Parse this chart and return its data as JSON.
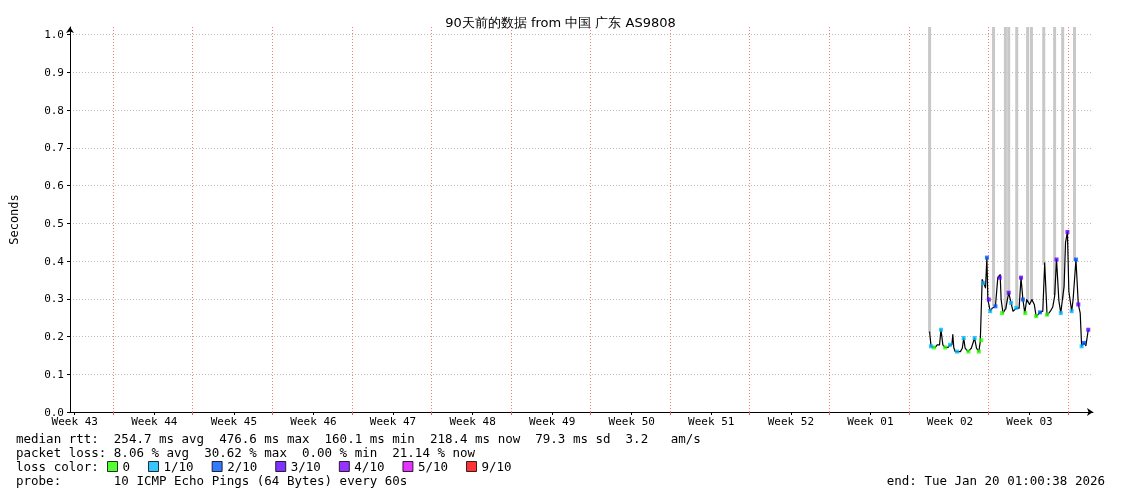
{
  "chart_data": {
    "type": "line",
    "title": "90天前的数据 from 中国 广东 AS9808",
    "ylabel": "Seconds",
    "legend_title": "loss color:",
    "legend": "bottom left",
    "marker": "square",
    "grid": true,
    "xlim": [
      "2025-10-22T01:00",
      "2026-01-20T01:00"
    ],
    "xticks": [
      {
        "value": "2025-10-22T11:00",
        "label": "Week 43"
      },
      {
        "value": "2025-10-29T11:00",
        "label": "Week 44"
      },
      {
        "value": "2025-11-05T11:00",
        "label": "Week 45"
      },
      {
        "value": "2025-11-12T11:00",
        "label": "Week 46"
      },
      {
        "value": "2025-11-19T11:00",
        "label": "Week 47"
      },
      {
        "value": "2025-11-26T11:00",
        "label": "Week 48"
      },
      {
        "value": "2025-12-03T11:00",
        "label": "Week 49"
      },
      {
        "value": "2025-12-10T11:00",
        "label": "Week 50"
      },
      {
        "value": "2025-12-17T11:00",
        "label": "Week 51"
      },
      {
        "value": "2025-12-24T11:00",
        "label": "Week 52"
      },
      {
        "value": "2025-12-31T11:00",
        "label": "Week 01"
      },
      {
        "value": "2026-01-07T11:00",
        "label": "Week 02"
      },
      {
        "value": "2026-01-14T11:00",
        "label": "Week 03"
      },
      {
        "value": "2025-10-25T20:00",
        "label": null
      },
      {
        "value": "2025-11-01T20:00",
        "label": null
      },
      {
        "value": "2025-11-08T20:00",
        "label": null
      },
      {
        "value": "2025-11-15T20:00",
        "label": null
      },
      {
        "value": "2025-11-22T20:00",
        "label": null
      },
      {
        "value": "2025-11-29T20:00",
        "label": null
      },
      {
        "value": "2025-12-06T20:00",
        "label": null
      },
      {
        "value": "2025-12-13T20:00",
        "label": null
      },
      {
        "value": "2025-12-20T20:00",
        "label": null
      },
      {
        "value": "2025-12-27T20:00",
        "label": null
      },
      {
        "value": "2026-01-03T20:00",
        "label": null
      },
      {
        "value": "2026-01-10T20:00",
        "label": null
      },
      {
        "value": "2026-01-17T20:00",
        "label": null
      }
    ],
    "ylim": [
      0,
      1.02
    ],
    "yticks": [
      {
        "value": 0,
        "label": "0.0"
      },
      0.1,
      0.2,
      0.3,
      0.4,
      0.5,
      0.6,
      0.7,
      0.8,
      0.9,
      {
        "value": 1,
        "label": "1.0"
      }
    ],
    "series": [
      {
        "type": "bar",
        "color": "#c8c8c8",
        "x": [
          "2026-01-05T16:00",
          "2026-01-11T07:00",
          "2026-01-12T08:00",
          "2026-01-12T15:00",
          "2026-01-13T08:00",
          "2026-01-14T07:00",
          "2026-01-14T15:00",
          "2026-01-15T17:00",
          "2026-01-16T16:00",
          "2026-01-17T09:00",
          "2026-01-18T10:00"
        ],
        "base": [
          0.21,
          0.28,
          0.27,
          0.31,
          0.28,
          0.29,
          0.29,
          0.39,
          0.31,
          0.3,
          0.4
        ],
        "values": [
          0.81,
          0.74,
          0.75,
          0.71,
          0.74,
          0.73,
          0.73,
          0.63,
          0.71,
          0.72,
          0.62
        ]
      },
      {
        "color": "#000000",
        "marker": "none",
        "x": [
          "2026-01-05T16:00",
          "2026-01-05T19:00",
          "2026-01-06T04:00",
          "2026-01-06T08:00",
          "2026-01-06T13:00",
          "2026-01-06T16:00",
          "2026-01-06T20:00",
          "2026-01-07T00:00",
          "2026-01-07T07:00",
          "2026-01-07T11:00",
          "2026-01-07T15:00",
          "2026-01-07T17:00",
          "2026-01-07T19:00",
          "2026-01-07T22:00",
          "2026-01-08T09:00",
          "2026-01-08T13:00",
          "2026-01-08T16:00",
          "2026-01-08T19:00",
          "2026-01-09T01:00",
          "2026-01-09T08:00",
          "2026-01-09T15:00",
          "2026-01-09T19:00",
          "2026-01-10T00:00",
          "2026-01-10T03:00",
          "2026-01-10T07:00",
          "2026-01-10T10:00",
          "2026-01-10T14:00",
          "2026-01-10T17:00",
          "2026-01-10T19:00",
          "2026-01-11T00:00",
          "2026-01-11T04:00",
          "2026-01-11T11:00",
          "2026-01-11T16:00",
          "2026-01-11T21:00",
          "2026-01-11T23:00",
          "2026-01-12T03:00",
          "2026-01-12T09:00",
          "2026-01-12T15:00",
          "2026-01-12T20:00",
          "2026-01-13T00:00",
          "2026-01-13T07:00",
          "2026-01-13T13:00",
          "2026-01-13T17:00",
          "2026-01-13T21:00",
          "2026-01-14T01:00",
          "2026-01-14T05:00",
          "2026-01-14T11:00",
          "2026-01-14T16:00",
          "2026-01-14T21:00",
          "2026-01-15T01:00",
          "2026-01-15T09:00",
          "2026-01-15T15:00",
          "2026-01-15T19:00",
          "2026-01-16T00:00",
          "2026-01-16T07:00",
          "2026-01-16T12:00",
          "2026-01-16T16:00",
          "2026-01-16T20:00",
          "2026-01-17T01:00",
          "2026-01-17T05:00",
          "2026-01-17T08:00",
          "2026-01-17T12:00",
          "2026-01-17T15:00",
          "2026-01-17T19:00",
          "2026-01-17T22:00",
          "2026-01-18T04:00",
          "2026-01-18T07:00",
          "2026-01-18T13:00",
          "2026-01-18T18:00",
          "2026-01-18T22:00",
          "2026-01-19T01:00",
          "2026-01-19T06:00",
          "2026-01-19T10:00",
          "2026-01-19T15:00"
        ],
        "values": [
          0.213,
          0.174,
          0.171,
          0.178,
          0.178,
          0.218,
          0.178,
          0.171,
          0.171,
          0.178,
          0.178,
          0.205,
          0.171,
          0.16,
          0.16,
          0.169,
          0.196,
          0.169,
          0.16,
          0.169,
          0.196,
          0.169,
          0.16,
          0.187,
          0.351,
          0.342,
          0.329,
          0.409,
          0.298,
          0.267,
          0.275,
          0.28,
          0.356,
          0.364,
          0.298,
          0.262,
          0.275,
          0.316,
          0.289,
          0.267,
          0.275,
          0.275,
          0.356,
          0.298,
          0.262,
          0.298,
          0.285,
          0.298,
          0.285,
          0.253,
          0.264,
          0.267,
          0.395,
          0.256,
          0.267,
          0.278,
          0.307,
          0.404,
          0.294,
          0.262,
          0.294,
          0.333,
          0.449,
          0.477,
          0.32,
          0.267,
          0.298,
          0.404,
          0.285,
          0.262,
          0.174,
          0.183,
          0.176,
          0.218
        ]
      },
      {
        "type": "scatter",
        "name": "0",
        "color": "#26ff00",
        "x": [
          "2026-01-06T01:00",
          "2026-01-07T01:00",
          "2026-01-09T02:00",
          "2026-01-10T00:00",
          "2026-01-10T05:00",
          "2026-01-12T01:00",
          "2026-01-14T02:00",
          "2026-01-15T01:00",
          "2026-01-16T00:00"
        ],
        "values": [
          0.171,
          0.171,
          0.16,
          0.16,
          0.19,
          0.262,
          0.262,
          0.254,
          0.258
        ]
      },
      {
        "type": "scatter",
        "name": "1/10",
        "color": "#00b8ff",
        "x": [
          "2026-01-05T19:00",
          "2026-01-06T16:00",
          "2026-01-07T11:00",
          "2026-01-08T02:00",
          "2026-01-08T16:00",
          "2026-01-09T15:00",
          "2026-01-10T09:00",
          "2026-01-11T00:00",
          "2026-01-12T20:00",
          "2026-01-13T07:00",
          "2026-01-17T05:00",
          "2026-01-18T04:00",
          "2026-01-19T01:00"
        ],
        "values": [
          0.174,
          0.218,
          0.178,
          0.16,
          0.196,
          0.196,
          0.342,
          0.267,
          0.289,
          0.276,
          0.262,
          0.267,
          0.174
        ]
      },
      {
        "type": "scatter",
        "name": "2/10",
        "color": "#0059ff",
        "x": [
          "2026-01-10T17:00",
          "2026-01-11T11:00",
          "2026-01-13T21:00",
          "2026-01-15T09:00",
          "2026-01-18T13:00",
          "2026-01-19T06:00"
        ],
        "values": [
          0.409,
          0.28,
          0.298,
          0.264,
          0.404,
          0.183
        ]
      },
      {
        "type": "scatter",
        "name": "3/10",
        "color": "#5e00ff",
        "x": [
          "2026-01-10T21:00",
          "2026-01-11T20:00",
          "2026-01-12T15:00",
          "2026-01-13T17:00",
          "2026-01-16T20:00",
          "2026-01-17T19:00",
          "2026-01-18T18:00",
          "2026-01-19T15:00"
        ],
        "values": [
          0.298,
          0.356,
          0.316,
          0.356,
          0.404,
          0.477,
          0.285,
          0.218
        ]
      },
      {
        "type": "scatter",
        "name": "4/10",
        "color": "#7e00ff"
      },
      {
        "type": "scatter",
        "name": "5/10",
        "color": "#dd00ff"
      },
      {
        "type": "scatter",
        "name": "9/10",
        "color": "#ff0000"
      }
    ],
    "annotations": [
      "median rtt:  254.7 ms avg  476.6 ms max  160.1 ms min  218.4 ms now  79.3 ms sd  3.2   am/s",
      "packet loss: 8.06 % avg  30.62 % max  0.00 % min  21.14 % now",
      "probe:       10 ICMP Echo Pings (64 Bytes) every 60s",
      "end: Tue Jan 20 01:00:38 2026"
    ]
  }
}
